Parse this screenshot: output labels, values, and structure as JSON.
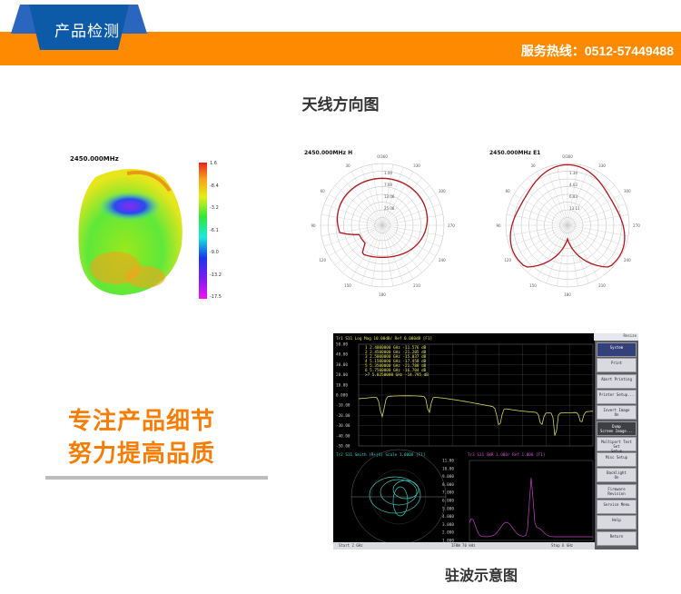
{
  "header": {
    "tab_label": "产品检测",
    "hotline": "服务热线：0512-57449488",
    "colors": {
      "orange": "#fd8a00",
      "blue": "#0c5aa8"
    }
  },
  "section1": {
    "title": "天线方向图"
  },
  "pattern3d": {
    "freq": "2450.000MHz",
    "scale": [
      "1.6",
      "-8.4",
      "-3.2",
      "-6.1",
      "-9.0",
      "-13.2",
      "-17.5"
    ]
  },
  "polar_h": {
    "title": "2450.000MHz  H",
    "angles": [
      "0/360",
      "30",
      "60",
      "90",
      "120",
      "150",
      "180",
      "210",
      "240",
      "270",
      "300",
      "330"
    ],
    "rings": [
      "1.00",
      "7.08",
      "13.06",
      "25.08"
    ]
  },
  "polar_e": {
    "title": "2450.000MHz  E1",
    "angles": [
      "0/360",
      "30",
      "60",
      "90",
      "120",
      "150",
      "180",
      "210",
      "240",
      "270",
      "300",
      "330"
    ],
    "rings": [
      "1.34",
      "4.03",
      "6.83",
      "13.11"
    ]
  },
  "slogan": {
    "line1": "专注产品细节",
    "line2": "努力提高品质"
  },
  "vna": {
    "topbar": "Resize",
    "tr1_header": "Tr1 S11 Log Mag 10.00dB/ Ref 0.000dB [F1]",
    "tr1_ticks": [
      "50.00",
      "40.00",
      "30.00",
      "20.00",
      "10.00",
      "0.000",
      "-10.00",
      "-20.00",
      "-30.00",
      "-40.00",
      "-50.00"
    ],
    "tr1_markers": [
      "1  2.4000000 GHz -11.576 dB",
      "2  2.4500000 GHz -21.205 dB",
      "3  2.5000000 GHz -15.037 dB",
      "4  5.1500000 GHz -17.458 dB",
      "5  5.3500000 GHz -21.788 dB",
      "6  5.7500000 GHz -16.704 dB",
      ">7 5.8250000 GHz -14.795 dB"
    ],
    "tr2_header": "Tr2 S11 Smith (R+jX) Scale 1.000U [F1]",
    "tr3_header": "Tr3 S11 SWR 1.000/ Ref 1.000 [F1]",
    "tr3_ticks": [
      "11.00",
      "10.00",
      "9.000",
      "8.000",
      "7.000",
      "6.000",
      "5.000",
      "4.000",
      "3.000",
      "2.000",
      "1.000"
    ],
    "status": {
      "start": "Start 2 GHz",
      "ifbw": "IFBW 70 kHz",
      "stop": "Stop 6 GHz"
    },
    "menu": [
      "System",
      "Print",
      "Abort Printing",
      "Printer Setup...",
      "Invert Image\nOn",
      "Dump\nScreen Image...",
      "Multiport Test Set\nSetup",
      "Misc Setup",
      "Backlight\nOn",
      "Firmware\nRevision",
      "Service Menu",
      "Help",
      "Return"
    ]
  },
  "section2": {
    "caption": "驻波示意图"
  }
}
